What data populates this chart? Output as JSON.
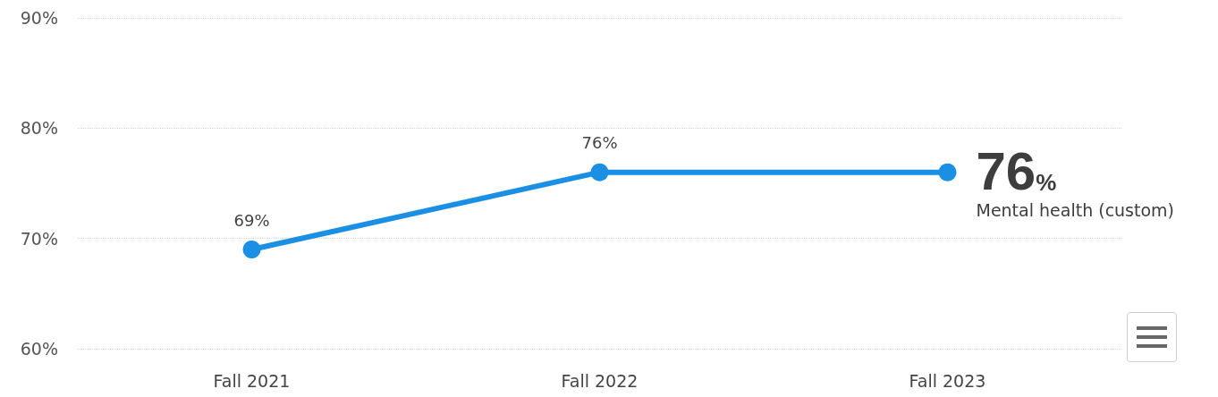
{
  "chart_data": {
    "type": "line",
    "categories": [
      "Fall 2021",
      "Fall 2022",
      "Fall 2023"
    ],
    "series": [
      {
        "name": "Mental health (custom)",
        "color": "#1a8fe3",
        "values": [
          69,
          76,
          76
        ],
        "value_labels": [
          "69%",
          "76%",
          "76%"
        ]
      }
    ],
    "ylim": [
      60,
      90
    ],
    "yticks": [
      {
        "value": 60,
        "label": "60%"
      },
      {
        "value": 70,
        "label": "70%"
      },
      {
        "value": 80,
        "label": "80%"
      },
      {
        "value": 90,
        "label": "90%"
      }
    ],
    "grid": "y",
    "marker": "circle",
    "line_style": "solid",
    "legend": false
  }
}
